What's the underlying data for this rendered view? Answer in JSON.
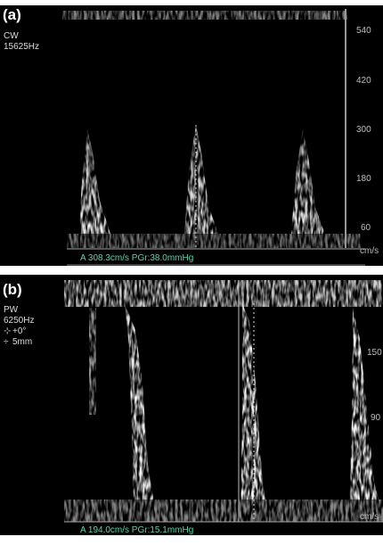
{
  "panels": [
    {
      "label": "(a)",
      "mode": "CW",
      "frequency": "15625Hz",
      "scale": [
        "540",
        "420",
        "300",
        "180",
        "60"
      ],
      "unit": "cm/s",
      "measurement": "A  308.3cm/s PGr:38.0mmHg"
    },
    {
      "label": "(b)",
      "mode": "PW",
      "frequency": "6250Hz",
      "angle": "+0°",
      "gate": "5mm",
      "scale": [
        "150",
        "90"
      ],
      "unit": "cm/s",
      "measurement": "A  194.0cm/s PGr:15.1mmHg"
    }
  ]
}
